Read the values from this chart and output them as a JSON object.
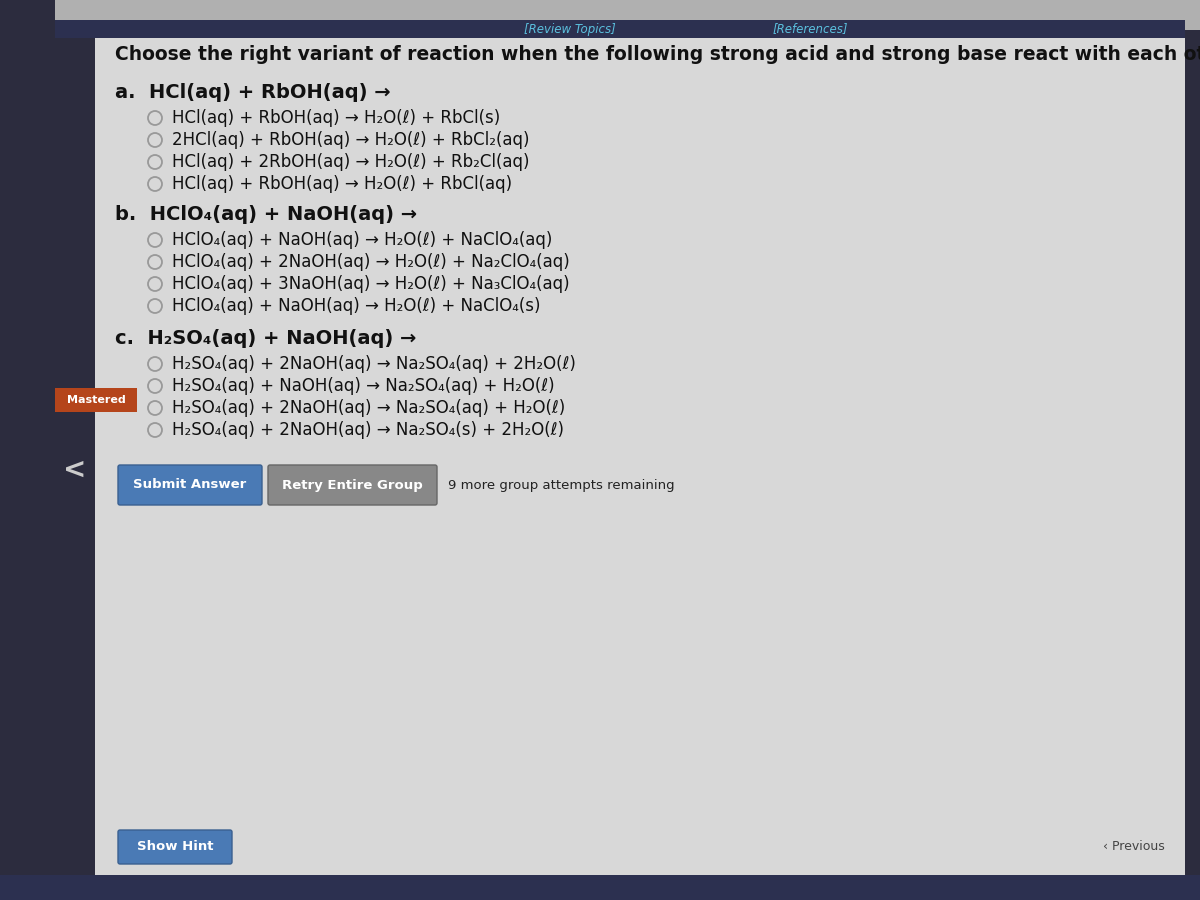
{
  "bg_outer": "#b0b0b0",
  "bg_main": "#d4d4d4",
  "bg_content": "#e2e2e2",
  "title": "Choose the right variant of reaction when the following strong acid and strong base react with each other:",
  "top_bar_color": "#2a2a3a",
  "review_topics_text": "[Review Topics]",
  "references_text": "[References]",
  "section_a_header": "a.  HCl(aq) + RbOH(aq) →",
  "section_a_options": [
    "HCl(aq) + RbOH(aq) → H₂O(ℓ) + RbCl(s)",
    "2HCl(aq) + RbOH(aq) → H₂O(ℓ) + RbCl₂(aq)",
    "HCl(aq) + 2RbOH(aq) → H₂O(ℓ) + Rb₂Cl(aq)",
    "HCl(aq) + RbOH(aq) → H₂O(ℓ) + RbCl(aq)"
  ],
  "section_b_header": "b.  HClO₄(aq) + NaOH(aq) →",
  "section_b_options": [
    "HClO₄(aq) + NaOH(aq) → H₂O(ℓ) + NaClO₄(aq)",
    "HClO₄(aq) + 2NaOH(aq) → H₂O(ℓ) + Na₂ClO₄(aq)",
    "HClO₄(aq) + 3NaOH(aq) → H₂O(ℓ) + Na₃ClO₄(aq)",
    "HClO₄(aq) + NaOH(aq) → H₂O(ℓ) + NaClO₄(s)"
  ],
  "section_c_header": "c.  H₂SO₄(aq) + NaOH(aq) →",
  "section_c_options": [
    "H₂SO₄(aq) + 2NaOH(aq) → Na₂SO₄(aq) + 2H₂O(ℓ)",
    "H₂SO₄(aq) + NaOH(aq) → Na₂SO₄(aq) + H₂O(ℓ)",
    "H₂SO₄(aq) + 2NaOH(aq) → Na₂SO₄(aq) + H₂O(ℓ)",
    "H₂SO₄(aq) + 2NaOH(aq) → Na₂SO₄(s) + 2H₂O(ℓ)"
  ],
  "mastered_label": "Mastered",
  "mastered_color": "#b5451b",
  "mastered_text_color": "#ffffff",
  "submit_btn_text": "Submit Answer",
  "retry_btn_text": "Retry Entire Group",
  "attempts_text": "9 more group attempts remaining",
  "hint_btn_text": "Show Hint",
  "previous_text": "Previous",
  "submit_btn_color": "#4a7ab5",
  "retry_btn_color": "#888888",
  "hint_btn_color": "#4a7ab5",
  "btn_text_color": "#ffffff",
  "circle_color": "#999999",
  "title_fontsize": 13.5,
  "option_fontsize": 12,
  "section_header_fontsize": 14
}
